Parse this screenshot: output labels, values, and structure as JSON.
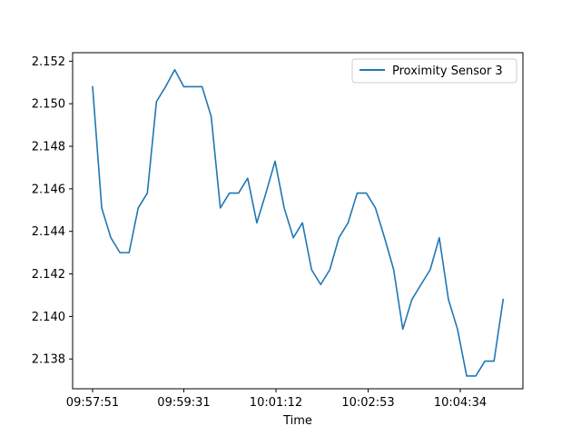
{
  "chart_data": {
    "type": "line",
    "title": "",
    "xlabel": "Time",
    "ylabel": "",
    "x_tick_labels": [
      "09:57:51",
      "09:59:31",
      "10:01:12",
      "10:02:53",
      "10:04:34"
    ],
    "y_tick_labels": [
      "2.138",
      "2.140",
      "2.142",
      "2.144",
      "2.146",
      "2.148",
      "2.150",
      "2.152"
    ],
    "ylim": [
      2.1366,
      2.1524
    ],
    "legend_position": "upper right",
    "series": [
      {
        "name": "Proximity Sensor 3",
        "color": "#1f77b4",
        "x": [
          "09:57:51",
          "09:58:01",
          "09:58:11",
          "09:58:21",
          "09:58:31",
          "09:58:41",
          "09:58:51",
          "09:59:01",
          "09:59:11",
          "09:59:21",
          "09:59:31",
          "09:59:41",
          "09:59:51",
          "10:00:01",
          "10:00:11",
          "10:00:21",
          "10:00:31",
          "10:00:41",
          "10:00:51",
          "10:01:01",
          "10:01:11",
          "10:01:21",
          "10:01:31",
          "10:01:41",
          "10:01:51",
          "10:02:01",
          "10:02:11",
          "10:02:21",
          "10:02:31",
          "10:02:41",
          "10:02:51",
          "10:03:01",
          "10:03:11",
          "10:03:21",
          "10:03:31",
          "10:03:41",
          "10:03:51",
          "10:04:01",
          "10:04:11",
          "10:04:21",
          "10:04:31",
          "10:04:41",
          "10:04:51",
          "10:05:01",
          "10:05:11",
          "10:05:21"
        ],
        "values": [
          2.1508,
          2.1451,
          2.1437,
          2.143,
          2.143,
          2.1451,
          2.1458,
          2.1501,
          2.1508,
          2.1516,
          2.1508,
          2.1508,
          2.1508,
          2.1494,
          2.1451,
          2.1458,
          2.1458,
          2.1465,
          2.1444,
          2.1458,
          2.1473,
          2.1451,
          2.1437,
          2.1444,
          2.1422,
          2.1415,
          2.1422,
          2.1437,
          2.1444,
          2.1458,
          2.1458,
          2.1451,
          2.1437,
          2.1422,
          2.1394,
          2.1408,
          2.1415,
          2.1422,
          2.1437,
          2.1408,
          2.1394,
          2.1372,
          2.1372,
          2.1379,
          2.1379,
          2.1408
        ]
      }
    ]
  }
}
